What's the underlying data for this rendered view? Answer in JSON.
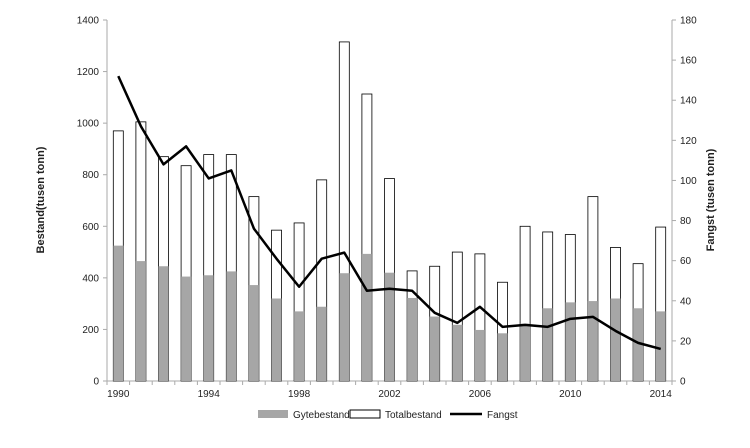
{
  "chart_data": {
    "type": "bar+line",
    "title": "",
    "ylabel": "Bestand(tusen tonn)",
    "y2label": "Fangst (tusen tonn)",
    "ylim": [
      0,
      1400
    ],
    "y2lim": [
      0,
      180
    ],
    "yticks": [
      0,
      200,
      400,
      600,
      800,
      1000,
      1200,
      1400
    ],
    "y2ticks": [
      0,
      20,
      40,
      60,
      80,
      100,
      120,
      140,
      160,
      180
    ],
    "xtick_labels": [
      "1990",
      "1994",
      "1998",
      "2002",
      "2006",
      "2010",
      "2014"
    ],
    "categories": [
      1990,
      1991,
      1992,
      1993,
      1994,
      1995,
      1996,
      1997,
      1998,
      1999,
      2000,
      2001,
      2002,
      2003,
      2004,
      2005,
      2006,
      2007,
      2008,
      2009,
      2010,
      2011,
      2012,
      2013,
      2014
    ],
    "series": [
      {
        "name": "Gytebestand",
        "type": "bar",
        "axis": "left",
        "color": "#a6a6a6",
        "values": [
          525,
          465,
          445,
          405,
          410,
          425,
          372,
          320,
          270,
          288,
          418,
          493,
          420,
          322,
          250,
          218,
          198,
          185,
          222,
          282,
          305,
          310,
          320,
          282,
          270
        ]
      },
      {
        "name": "Totalbestand",
        "type": "bar",
        "axis": "left",
        "color": "#ffffff",
        "values": [
          970,
          1005,
          870,
          835,
          878,
          878,
          715,
          585,
          613,
          780,
          1315,
          1113,
          785,
          427,
          445,
          500,
          493,
          383,
          600,
          578,
          568,
          715,
          518,
          455,
          597
        ]
      },
      {
        "name": "Fangst",
        "type": "line",
        "axis": "right",
        "color": "#000000",
        "values": [
          152,
          127,
          108,
          117,
          101,
          105,
          76,
          61,
          47,
          61,
          64,
          45,
          46,
          45,
          34,
          29,
          37,
          27,
          28,
          27,
          31,
          32,
          25,
          19,
          16
        ]
      }
    ],
    "legend": "bottom",
    "grid": false
  }
}
